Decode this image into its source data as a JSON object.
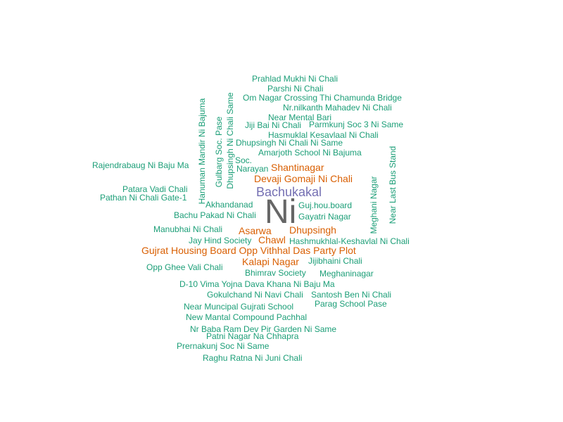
{
  "colors": {
    "teal": "#1b9e77",
    "orange": "#d95f02",
    "purple": "#7570b3",
    "gray": "#666666"
  },
  "words": {
    "w01": "Prahlad Mukhi Ni Chali",
    "w02": "Parshi Ni Chali",
    "w03": "Om Nagar Crossing Thi Chamunda Bridge",
    "w04": "Nr.nilkanth Mahadev Ni Chali",
    "w05": "Near Mental Bari",
    "w06": "Jiji Bai Ni Chali",
    "w07": "Parmkunj Soc 3 Ni Same",
    "w08": "Hasmuklal Kesavlaal Ni Chali",
    "w09": "Dhupsingh Ni Chali Ni Same",
    "w10": "Amarjoth School Ni Bajuma",
    "w11": "Rajendrabaug Ni Baju Ma",
    "w12": "Soc.",
    "w13": "Narayan",
    "w14": "Shantinagar",
    "w15": "Devaji Gomaji Ni Chali",
    "w16": "Patara Vadi Chali",
    "w17": "Bachukakal",
    "w18": "Pathan Ni Chali Gate-1",
    "w19": "Akhandanad",
    "w20": "Guj.hou.board",
    "w21": "Ni",
    "w22": "Bachu Pakad Ni Chali",
    "w23": "Gayatri Nagar",
    "w24": "Manubhai Ni Chali",
    "w25": "Asarwa",
    "w26": "Dhupsingh",
    "w27": "Jay Hind Society",
    "w28": "Chawl",
    "w29": "Hashmukhlal-Keshavlal Ni Chali",
    "w30": "Gujrat Housing Board Opp Vithhal Das Party Plot",
    "w31": "Kalapi Nagar",
    "w32": "Jijibhaini Chali",
    "w33": "Opp Ghee Vali Chali",
    "w34": "Bhimrav Society",
    "w35": "Meghaninagar",
    "w36": "D-10 Vima Yojna Dava Khana Ni Baju Ma",
    "w37": "Gokulchand Ni Navi Chali",
    "w38": "Santosh Ben Ni Chali",
    "w39": "Parag School Pase",
    "w40": "Near Muncipal Gujrati School",
    "w41": "New Mantal Compound Pachhal",
    "w42": "Nr Baba Ram Dev Pir Garden Ni Same",
    "w43": "Patni Nagar Na Chhapra",
    "w44": "Prernakunj Soc Ni Same",
    "w45": "Raghu Ratna Ni Juni Chali",
    "v01": "Hanuman Mandir Ni Bajuma",
    "v02": "Gulbarg Soc. Pase",
    "v03": "Dhupsingh Ni Chali Same",
    "v04": "Meghani Nagar",
    "v05": "Near Last Bus Stand"
  }
}
